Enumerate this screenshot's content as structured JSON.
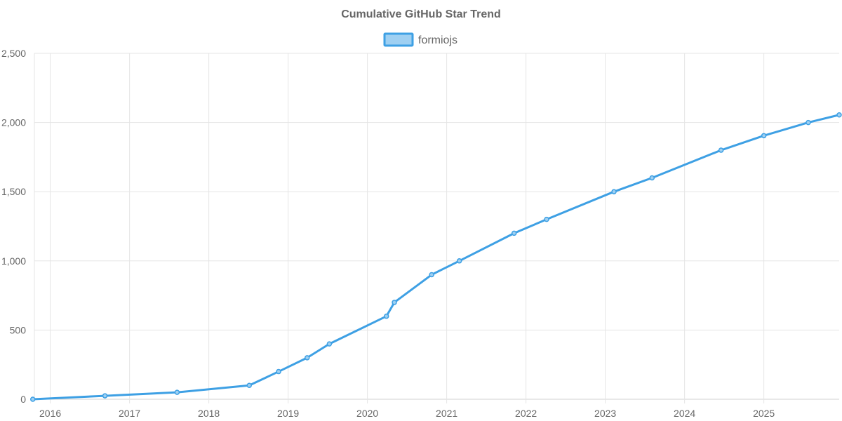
{
  "chart_data": {
    "type": "line",
    "title": "Cumulative GitHub Star Trend",
    "xlabel": "",
    "ylabel": "",
    "xlim": [
      2015.8,
      2025.95
    ],
    "ylim": [
      0,
      2500
    ],
    "x_ticks": [
      2016,
      2017,
      2018,
      2019,
      2020,
      2021,
      2022,
      2023,
      2024,
      2025
    ],
    "x_tick_labels": [
      "2016",
      "2017",
      "2018",
      "2019",
      "2020",
      "2021",
      "2022",
      "2023",
      "2024",
      "2025"
    ],
    "y_ticks": [
      0,
      500,
      1000,
      1500,
      2000,
      2500
    ],
    "y_tick_labels": [
      "0",
      "500",
      "1,000",
      "1,500",
      "2,000",
      "2,500"
    ],
    "grid": true,
    "legend_position": "top-center",
    "series": [
      {
        "name": "formiojs",
        "color": "#3ea0e4",
        "fill": "#9fd0f2",
        "x": [
          2015.78,
          2016.69,
          2017.6,
          2018.51,
          2018.88,
          2019.24,
          2019.52,
          2020.24,
          2020.34,
          2020.81,
          2021.16,
          2021.85,
          2022.26,
          2023.11,
          2023.59,
          2024.46,
          2025.0,
          2025.56,
          2025.95
        ],
        "values": [
          0,
          25,
          50,
          100,
          200,
          300,
          400,
          600,
          700,
          900,
          1000,
          1200,
          1300,
          1500,
          1600,
          1800,
          1905,
          2000,
          2055
        ]
      }
    ]
  }
}
